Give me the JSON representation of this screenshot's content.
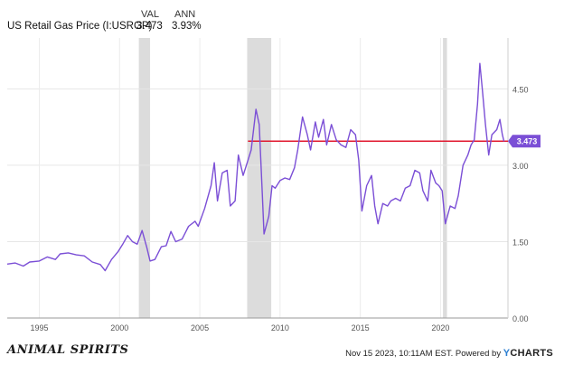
{
  "legend": {
    "series_label": "US Retail Gas Price (I:USRGP)",
    "val_header": "VAL",
    "ann_header": "ANN",
    "val": "3.473",
    "ann": "3.93%"
  },
  "footer": {
    "timestamp": "Nov 15 2023, 10:11AM EST.",
    "powered_by": "Powered by",
    "brand_y": "Y",
    "brand_rest": "CHARTS"
  },
  "logo": "ANIMAL SPIRITS",
  "chart_data": {
    "type": "line",
    "series": [
      {
        "name": "US Retail Gas Price (I:USRGP)",
        "color": "#7b4fd6",
        "points": [
          [
            1993.0,
            1.06
          ],
          [
            1993.5,
            1.08
          ],
          [
            1994.0,
            1.02
          ],
          [
            1994.4,
            1.1
          ],
          [
            1995.0,
            1.12
          ],
          [
            1995.5,
            1.2
          ],
          [
            1996.0,
            1.15
          ],
          [
            1996.3,
            1.26
          ],
          [
            1996.8,
            1.28
          ],
          [
            1997.3,
            1.24
          ],
          [
            1997.8,
            1.22
          ],
          [
            1998.3,
            1.1
          ],
          [
            1998.8,
            1.05
          ],
          [
            1999.1,
            0.93
          ],
          [
            1999.5,
            1.15
          ],
          [
            1999.9,
            1.3
          ],
          [
            2000.2,
            1.45
          ],
          [
            2000.5,
            1.62
          ],
          [
            2000.8,
            1.5
          ],
          [
            2001.1,
            1.45
          ],
          [
            2001.4,
            1.72
          ],
          [
            2001.7,
            1.38
          ],
          [
            2001.9,
            1.12
          ],
          [
            2002.2,
            1.15
          ],
          [
            2002.6,
            1.4
          ],
          [
            2002.9,
            1.42
          ],
          [
            2003.2,
            1.7
          ],
          [
            2003.5,
            1.5
          ],
          [
            2003.9,
            1.55
          ],
          [
            2004.3,
            1.8
          ],
          [
            2004.7,
            1.9
          ],
          [
            2004.9,
            1.8
          ],
          [
            2005.3,
            2.15
          ],
          [
            2005.7,
            2.6
          ],
          [
            2005.9,
            3.05
          ],
          [
            2006.1,
            2.3
          ],
          [
            2006.4,
            2.85
          ],
          [
            2006.7,
            2.9
          ],
          [
            2006.9,
            2.2
          ],
          [
            2007.2,
            2.3
          ],
          [
            2007.4,
            3.2
          ],
          [
            2007.7,
            2.8
          ],
          [
            2007.9,
            3.0
          ],
          [
            2008.2,
            3.3
          ],
          [
            2008.5,
            4.1
          ],
          [
            2008.7,
            3.8
          ],
          [
            2008.9,
            2.4
          ],
          [
            2009.0,
            1.65
          ],
          [
            2009.3,
            2.0
          ],
          [
            2009.5,
            2.6
          ],
          [
            2009.7,
            2.55
          ],
          [
            2010.0,
            2.7
          ],
          [
            2010.3,
            2.75
          ],
          [
            2010.6,
            2.72
          ],
          [
            2010.9,
            2.95
          ],
          [
            2011.1,
            3.3
          ],
          [
            2011.4,
            3.95
          ],
          [
            2011.7,
            3.6
          ],
          [
            2011.9,
            3.3
          ],
          [
            2012.2,
            3.85
          ],
          [
            2012.4,
            3.55
          ],
          [
            2012.7,
            3.9
          ],
          [
            2012.9,
            3.4
          ],
          [
            2013.2,
            3.8
          ],
          [
            2013.5,
            3.5
          ],
          [
            2013.8,
            3.4
          ],
          [
            2014.1,
            3.35
          ],
          [
            2014.4,
            3.7
          ],
          [
            2014.7,
            3.6
          ],
          [
            2014.9,
            3.1
          ],
          [
            2015.1,
            2.1
          ],
          [
            2015.4,
            2.6
          ],
          [
            2015.7,
            2.8
          ],
          [
            2015.9,
            2.2
          ],
          [
            2016.1,
            1.85
          ],
          [
            2016.4,
            2.25
          ],
          [
            2016.7,
            2.2
          ],
          [
            2016.9,
            2.3
          ],
          [
            2017.2,
            2.35
          ],
          [
            2017.5,
            2.3
          ],
          [
            2017.8,
            2.55
          ],
          [
            2018.1,
            2.6
          ],
          [
            2018.4,
            2.9
          ],
          [
            2018.7,
            2.85
          ],
          [
            2018.9,
            2.5
          ],
          [
            2019.2,
            2.3
          ],
          [
            2019.4,
            2.9
          ],
          [
            2019.7,
            2.65
          ],
          [
            2019.9,
            2.6
          ],
          [
            2020.1,
            2.5
          ],
          [
            2020.3,
            1.85
          ],
          [
            2020.6,
            2.2
          ],
          [
            2020.9,
            2.15
          ],
          [
            2021.1,
            2.4
          ],
          [
            2021.4,
            3.0
          ],
          [
            2021.7,
            3.2
          ],
          [
            2021.9,
            3.4
          ],
          [
            2022.1,
            3.5
          ],
          [
            2022.3,
            4.2
          ],
          [
            2022.45,
            5.0
          ],
          [
            2022.6,
            4.5
          ],
          [
            2022.8,
            3.8
          ],
          [
            2023.0,
            3.2
          ],
          [
            2023.2,
            3.6
          ],
          [
            2023.5,
            3.7
          ],
          [
            2023.7,
            3.9
          ],
          [
            2023.85,
            3.6
          ],
          [
            2023.95,
            3.47
          ]
        ]
      }
    ],
    "reference_line": {
      "value": 3.473,
      "color": "#e0192f",
      "from_x": 2008.0
    },
    "last_value_label": "3.473",
    "recessions": [
      [
        2001.2,
        2001.9
      ],
      [
        2007.95,
        2009.45
      ],
      [
        2020.15,
        2020.4
      ]
    ],
    "xlim": [
      1993.0,
      2024.2
    ],
    "ylim": [
      0.0,
      5.5
    ],
    "x_ticks": [
      {
        "value": 1995,
        "label": "1995"
      },
      {
        "value": 2000,
        "label": "2000"
      },
      {
        "value": 2005,
        "label": "2005"
      },
      {
        "value": 2010,
        "label": "2010"
      },
      {
        "value": 2015,
        "label": "2015"
      },
      {
        "value": 2020,
        "label": "2020"
      }
    ],
    "y_ticks": [
      {
        "value": 0.0,
        "label": "0.00"
      },
      {
        "value": 1.5,
        "label": "1.50"
      },
      {
        "value": 3.0,
        "label": "3.00"
      },
      {
        "value": 4.5,
        "label": "4.50"
      }
    ],
    "grid": true
  }
}
